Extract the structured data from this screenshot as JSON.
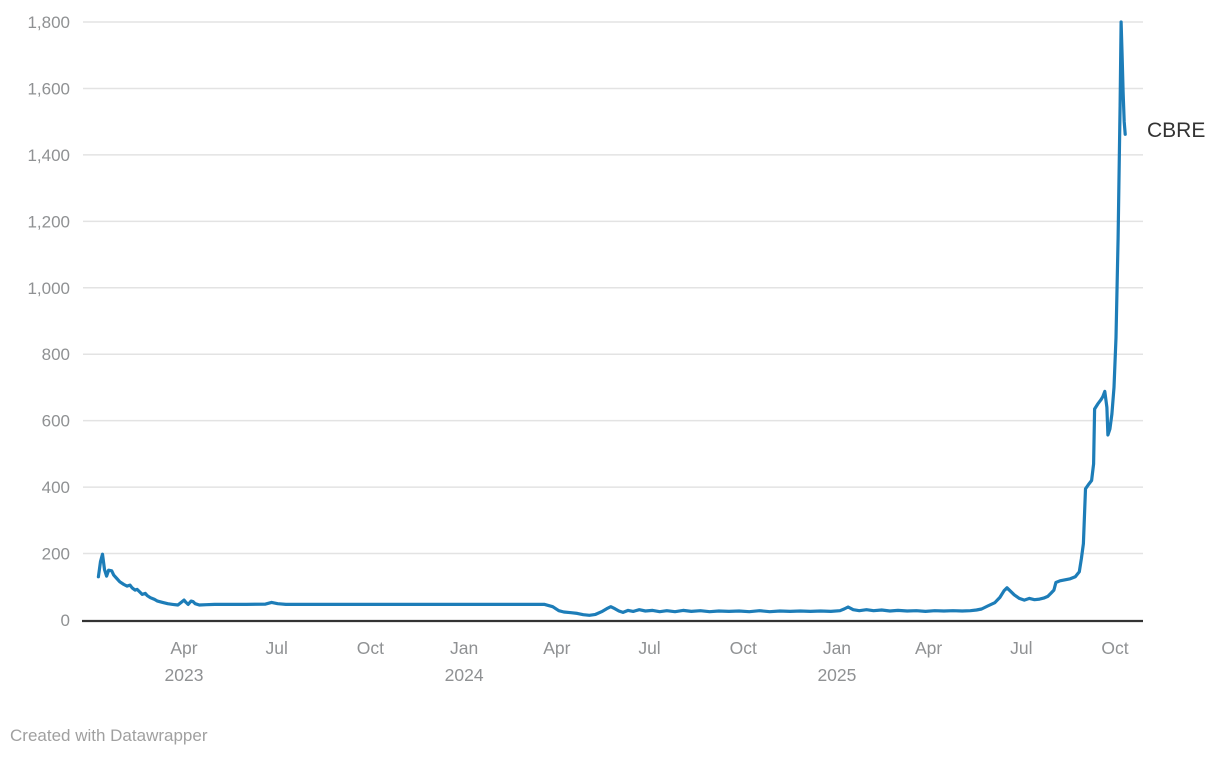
{
  "chart_data": {
    "type": "line",
    "title": "",
    "xlabel": "",
    "ylabel": "",
    "ylim": [
      0,
      1800
    ],
    "grid": "horizontal",
    "legend_position": "end-of-line label",
    "x_range": [
      "2023-01-07",
      "2025-10-11"
    ],
    "yticks": [
      0,
      200,
      400,
      600,
      800,
      1000,
      1200,
      1400,
      1600,
      1800
    ],
    "ytick_labels": [
      "0",
      "200",
      "400",
      "600",
      "800",
      "1,000",
      "1,200",
      "1,400",
      "1,600",
      "1,800"
    ],
    "xticks": [
      {
        "date": "2023-04-01",
        "label": "Apr",
        "year": "2023"
      },
      {
        "date": "2023-07-01",
        "label": "Jul"
      },
      {
        "date": "2023-10-01",
        "label": "Oct"
      },
      {
        "date": "2024-01-01",
        "label": "Jan",
        "year": "2024"
      },
      {
        "date": "2024-04-01",
        "label": "Apr"
      },
      {
        "date": "2024-07-01",
        "label": "Jul"
      },
      {
        "date": "2024-10-01",
        "label": "Oct"
      },
      {
        "date": "2025-01-01",
        "label": "Jan",
        "year": "2025"
      },
      {
        "date": "2025-04-01",
        "label": "Apr"
      },
      {
        "date": "2025-07-01",
        "label": "Jul"
      },
      {
        "date": "2025-10-01",
        "label": "Oct"
      }
    ],
    "colors": {
      "line": "#1d7db8",
      "grid": "#e3e3e3",
      "axis": "#333333",
      "tick_text": "#8f9193",
      "label_text": "#333333",
      "footer_text": "#a0a0a0"
    },
    "series": [
      {
        "name": "CBRE",
        "color": "#1d7db8",
        "points": [
          [
            "2023-01-07",
            130
          ],
          [
            "2023-01-09",
            176
          ],
          [
            "2023-01-11",
            198
          ],
          [
            "2023-01-13",
            152
          ],
          [
            "2023-01-15",
            132
          ],
          [
            "2023-01-17",
            150
          ],
          [
            "2023-01-20",
            148
          ],
          [
            "2023-01-22",
            135
          ],
          [
            "2023-01-25",
            125
          ],
          [
            "2023-01-28",
            115
          ],
          [
            "2023-02-01",
            107
          ],
          [
            "2023-02-04",
            102
          ],
          [
            "2023-02-07",
            105
          ],
          [
            "2023-02-09",
            97
          ],
          [
            "2023-02-12",
            90
          ],
          [
            "2023-02-14",
            92
          ],
          [
            "2023-02-17",
            83
          ],
          [
            "2023-02-19",
            77
          ],
          [
            "2023-02-22",
            80
          ],
          [
            "2023-02-24",
            73
          ],
          [
            "2023-02-27",
            67
          ],
          [
            "2023-03-03",
            62
          ],
          [
            "2023-03-06",
            57
          ],
          [
            "2023-03-11",
            53
          ],
          [
            "2023-03-16",
            49
          ],
          [
            "2023-03-21",
            47
          ],
          [
            "2023-03-26",
            45
          ],
          [
            "2023-03-30",
            55
          ],
          [
            "2023-04-01",
            60
          ],
          [
            "2023-04-03",
            53
          ],
          [
            "2023-04-05",
            47
          ],
          [
            "2023-04-08",
            57
          ],
          [
            "2023-04-10",
            55
          ],
          [
            "2023-04-12",
            49
          ],
          [
            "2023-04-16",
            45
          ],
          [
            "2023-04-23",
            46
          ],
          [
            "2023-05-01",
            47
          ],
          [
            "2023-05-15",
            47
          ],
          [
            "2023-06-01",
            47
          ],
          [
            "2023-06-20",
            48
          ],
          [
            "2023-06-26",
            53
          ],
          [
            "2023-07-02",
            49
          ],
          [
            "2023-07-10",
            47
          ],
          [
            "2023-08-01",
            47
          ],
          [
            "2023-09-01",
            47
          ],
          [
            "2023-10-01",
            47
          ],
          [
            "2023-11-01",
            47
          ],
          [
            "2023-12-01",
            47
          ],
          [
            "2024-01-01",
            47
          ],
          [
            "2024-02-01",
            47
          ],
          [
            "2024-03-01",
            47
          ],
          [
            "2024-03-20",
            47
          ],
          [
            "2024-03-28",
            40
          ],
          [
            "2024-04-03",
            28
          ],
          [
            "2024-04-08",
            24
          ],
          [
            "2024-04-15",
            22
          ],
          [
            "2024-04-21",
            20
          ],
          [
            "2024-04-27",
            16
          ],
          [
            "2024-05-03",
            14
          ],
          [
            "2024-05-09",
            17
          ],
          [
            "2024-05-15",
            25
          ],
          [
            "2024-05-20",
            34
          ],
          [
            "2024-05-24",
            40
          ],
          [
            "2024-05-28",
            34
          ],
          [
            "2024-06-01",
            27
          ],
          [
            "2024-06-05",
            23
          ],
          [
            "2024-06-10",
            29
          ],
          [
            "2024-06-15",
            26
          ],
          [
            "2024-06-21",
            31
          ],
          [
            "2024-06-27",
            27
          ],
          [
            "2024-07-04",
            29
          ],
          [
            "2024-07-11",
            25
          ],
          [
            "2024-07-18",
            28
          ],
          [
            "2024-07-26",
            25
          ],
          [
            "2024-08-03",
            29
          ],
          [
            "2024-08-11",
            26
          ],
          [
            "2024-08-20",
            28
          ],
          [
            "2024-08-29",
            25
          ],
          [
            "2024-09-07",
            27
          ],
          [
            "2024-09-17",
            26
          ],
          [
            "2024-09-27",
            27
          ],
          [
            "2024-10-07",
            25
          ],
          [
            "2024-10-17",
            28
          ],
          [
            "2024-10-27",
            25
          ],
          [
            "2024-11-06",
            27
          ],
          [
            "2024-11-16",
            26
          ],
          [
            "2024-11-26",
            27
          ],
          [
            "2024-12-06",
            26
          ],
          [
            "2024-12-16",
            27
          ],
          [
            "2024-12-26",
            26
          ],
          [
            "2025-01-04",
            28
          ],
          [
            "2025-01-08",
            33
          ],
          [
            "2025-01-12",
            39
          ],
          [
            "2025-01-17",
            31
          ],
          [
            "2025-01-23",
            28
          ],
          [
            "2025-01-30",
            31
          ],
          [
            "2025-02-06",
            28
          ],
          [
            "2025-02-14",
            30
          ],
          [
            "2025-02-22",
            27
          ],
          [
            "2025-03-02",
            29
          ],
          [
            "2025-03-11",
            27
          ],
          [
            "2025-03-20",
            28
          ],
          [
            "2025-03-29",
            26
          ],
          [
            "2025-04-07",
            28
          ],
          [
            "2025-04-16",
            27
          ],
          [
            "2025-04-25",
            28
          ],
          [
            "2025-05-04",
            27
          ],
          [
            "2025-05-12",
            28
          ],
          [
            "2025-05-18",
            30
          ],
          [
            "2025-05-23",
            33
          ],
          [
            "2025-05-29",
            42
          ],
          [
            "2025-06-05",
            52
          ],
          [
            "2025-06-10",
            68
          ],
          [
            "2025-06-14",
            88
          ],
          [
            "2025-06-17",
            97
          ],
          [
            "2025-06-20",
            88
          ],
          [
            "2025-06-24",
            76
          ],
          [
            "2025-06-29",
            65
          ],
          [
            "2025-07-04",
            60
          ],
          [
            "2025-07-09",
            65
          ],
          [
            "2025-07-14",
            61
          ],
          [
            "2025-07-19",
            63
          ],
          [
            "2025-07-23",
            66
          ],
          [
            "2025-07-27",
            71
          ],
          [
            "2025-07-30",
            80
          ],
          [
            "2025-08-02",
            90
          ],
          [
            "2025-08-04",
            113
          ],
          [
            "2025-08-08",
            118
          ],
          [
            "2025-08-13",
            121
          ],
          [
            "2025-08-18",
            124
          ],
          [
            "2025-08-23",
            130
          ],
          [
            "2025-08-27",
            145
          ],
          [
            "2025-08-29",
            185
          ],
          [
            "2025-08-31",
            230
          ],
          [
            "2025-09-02",
            395
          ],
          [
            "2025-09-05",
            408
          ],
          [
            "2025-09-08",
            420
          ],
          [
            "2025-09-10",
            470
          ],
          [
            "2025-09-11",
            635
          ],
          [
            "2025-09-14",
            650
          ],
          [
            "2025-09-17",
            662
          ],
          [
            "2025-09-19",
            672
          ],
          [
            "2025-09-21",
            688
          ],
          [
            "2025-09-23",
            640
          ],
          [
            "2025-09-24",
            557
          ],
          [
            "2025-09-26",
            575
          ],
          [
            "2025-09-28",
            620
          ],
          [
            "2025-09-30",
            700
          ],
          [
            "2025-10-02",
            850
          ],
          [
            "2025-10-04",
            1150
          ],
          [
            "2025-10-06",
            1550
          ],
          [
            "2025-10-07",
            1800
          ],
          [
            "2025-10-08",
            1700
          ],
          [
            "2025-10-09",
            1590
          ],
          [
            "2025-10-10",
            1500
          ],
          [
            "2025-10-11",
            1462
          ]
        ]
      }
    ]
  },
  "footer": {
    "attribution": "Created with Datawrapper"
  }
}
